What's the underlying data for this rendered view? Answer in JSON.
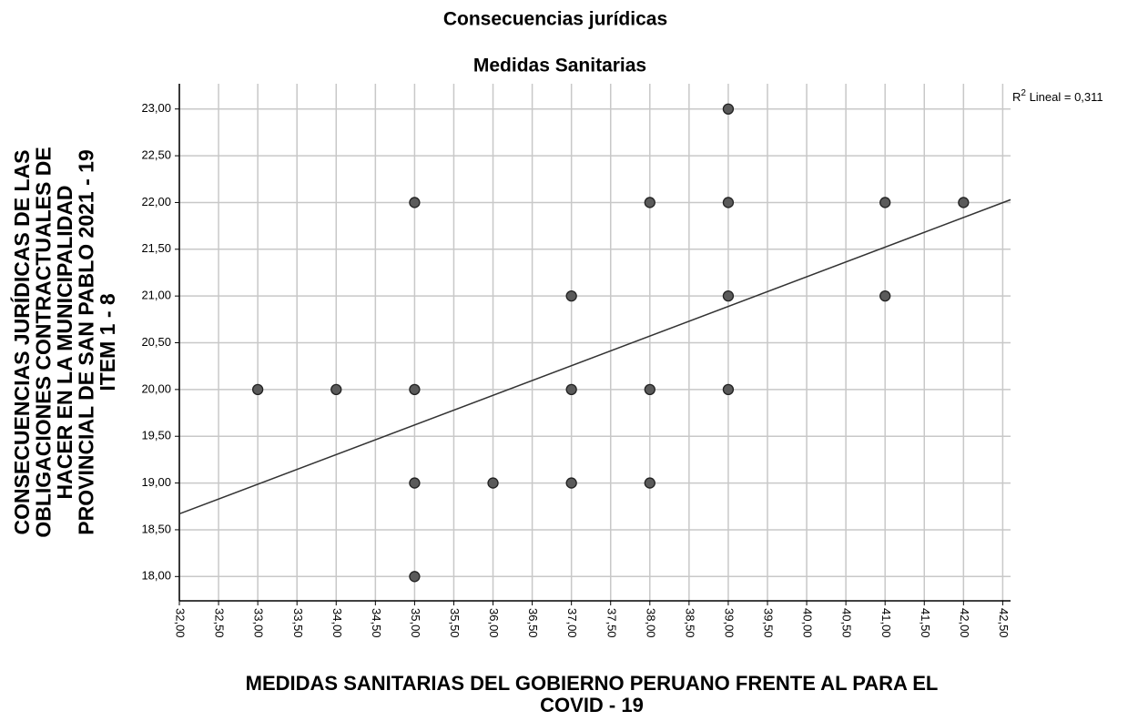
{
  "chart_data": {
    "type": "scatter",
    "title": "Consecuencias jurídicas",
    "subtitle": "Medidas Sanitarias",
    "x_label": [
      "MEDIDAS SANITARIAS DEL GOBIERNO PERUANO FRENTE AL PARA EL",
      "COVID - 19"
    ],
    "y_label": [
      "CONSECUENCIAS JURÍDICAS DE LAS",
      "OBLIGACIONES CONTRACTUALES DE",
      "HACER EN LA MUNICIPALIDAD",
      "PROVINCIAL DE SAN PABLO 2021 - 19",
      "ITEM 1 - 8"
    ],
    "annotation": {
      "base": "R",
      "sup": "2",
      "rest": " Lineal = 0,311"
    },
    "x": [
      33,
      34,
      35,
      35,
      35,
      35,
      36,
      37,
      37,
      37,
      38,
      38,
      38,
      39,
      39,
      39,
      39,
      41,
      41,
      42
    ],
    "y": [
      20,
      20,
      22,
      20,
      19,
      18,
      19,
      21,
      20,
      19,
      22,
      20,
      19,
      23,
      22,
      21,
      20,
      22,
      21,
      22
    ],
    "color": "#5a5a5a",
    "fit": {
      "x": [
        32,
        42.6
      ],
      "y": [
        18.67,
        22.03
      ],
      "color": "#333333"
    },
    "xlim": [
      32,
      42.6
    ],
    "ylim": [
      17.74,
      23.27
    ],
    "grid": true,
    "xticks": [
      {
        "value": 32,
        "label": "32,00"
      },
      {
        "value": 32.5,
        "label": "32,50"
      },
      {
        "value": 33,
        "label": "33,00"
      },
      {
        "value": 33.5,
        "label": "33,50"
      },
      {
        "value": 34,
        "label": "34,00"
      },
      {
        "value": 34.5,
        "label": "34,50"
      },
      {
        "value": 35,
        "label": "35,00"
      },
      {
        "value": 35.5,
        "label": "35,50"
      },
      {
        "value": 36,
        "label": "36,00"
      },
      {
        "value": 36.5,
        "label": "36,50"
      },
      {
        "value": 37,
        "label": "37,00"
      },
      {
        "value": 37.5,
        "label": "37,50"
      },
      {
        "value": 38,
        "label": "38,00"
      },
      {
        "value": 38.5,
        "label": "38,50"
      },
      {
        "value": 39,
        "label": "39,00"
      },
      {
        "value": 39.5,
        "label": "39,50"
      },
      {
        "value": 40,
        "label": "40,00"
      },
      {
        "value": 40.5,
        "label": "40,50"
      },
      {
        "value": 41,
        "label": "41,00"
      },
      {
        "value": 41.5,
        "label": "41,50"
      },
      {
        "value": 42,
        "label": "42,00"
      },
      {
        "value": 42.5,
        "label": "42,50"
      }
    ],
    "yticks": [
      {
        "value": 18,
        "label": "18,00"
      },
      {
        "value": 18.5,
        "label": "18,50"
      },
      {
        "value": 19,
        "label": "19,00"
      },
      {
        "value": 19.5,
        "label": "19,50"
      },
      {
        "value": 20,
        "label": "20,00"
      },
      {
        "value": 20.5,
        "label": "20,50"
      },
      {
        "value": 21,
        "label": "21,00"
      },
      {
        "value": 21.5,
        "label": "21,50"
      },
      {
        "value": 22,
        "label": "22,00"
      },
      {
        "value": 22.5,
        "label": "22,50"
      },
      {
        "value": 23,
        "label": "23,00"
      }
    ]
  }
}
